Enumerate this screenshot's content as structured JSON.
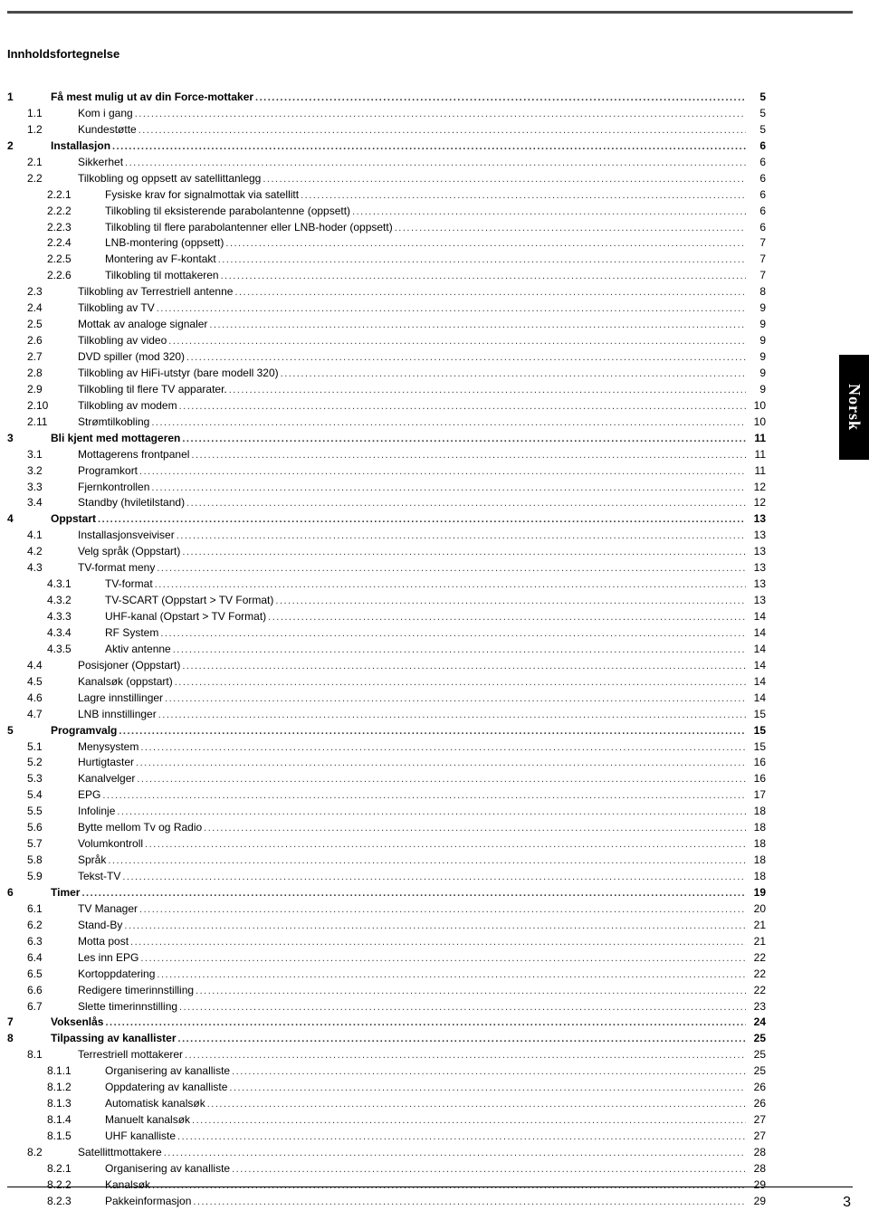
{
  "document": {
    "title": "Innholdsfortegnelse",
    "page_number": "3",
    "side_tab": "Norsk",
    "colors": {
      "rule": "#4a4a4a",
      "text": "#000000",
      "tab_bg": "#000000",
      "tab_fg": "#ffffff"
    }
  },
  "toc": [
    {
      "level": 0,
      "num": "1",
      "title": "Få mest mulig ut av din Force-mottaker",
      "page": "5",
      "bold": true
    },
    {
      "level": 1,
      "num": "1.1",
      "title": "Kom i gang",
      "page": "5"
    },
    {
      "level": 1,
      "num": "1.2",
      "title": "Kundestøtte",
      "page": "5"
    },
    {
      "level": 0,
      "num": "2",
      "title": "Installasjon",
      "page": "6",
      "bold": true
    },
    {
      "level": 1,
      "num": "2.1",
      "title": "Sikkerhet",
      "page": "6"
    },
    {
      "level": 1,
      "num": "2.2",
      "title": "Tilkobling og oppsett av satellittanlegg",
      "page": "6"
    },
    {
      "level": 2,
      "num": "2.2.1",
      "title": "Fysiske krav for signalmottak via satellitt",
      "page": "6"
    },
    {
      "level": 2,
      "num": "2.2.2",
      "title": "Tilkobling til eksisterende parabolantenne (oppsett)",
      "page": "6"
    },
    {
      "level": 2,
      "num": "2.2.3",
      "title": "Tilkobling til flere parabolantenner eller LNB-hoder (oppsett)",
      "page": "6"
    },
    {
      "level": 2,
      "num": "2.2.4",
      "title": "LNB-montering (oppsett)",
      "page": "7"
    },
    {
      "level": 2,
      "num": "2.2.5",
      "title": "Montering av F-kontakt",
      "page": "7"
    },
    {
      "level": 2,
      "num": "2.2.6",
      "title": "Tilkobling til mottakeren",
      "page": "7"
    },
    {
      "level": 1,
      "num": "2.3",
      "title": "Tilkobling av Terrestriell antenne",
      "page": "8"
    },
    {
      "level": 1,
      "num": "2.4",
      "title": "Tilkobling av TV",
      "page": "9"
    },
    {
      "level": 1,
      "num": "2.5",
      "title": "Mottak av analoge signaler",
      "page": "9"
    },
    {
      "level": 1,
      "num": "2.6",
      "title": "Tilkobling av video",
      "page": "9"
    },
    {
      "level": 1,
      "num": "2.7",
      "title": "DVD spiller (mod 320)",
      "page": "9"
    },
    {
      "level": 1,
      "num": "2.8",
      "title": "Tilkobling av HiFi-utstyr (bare modell 320)",
      "page": "9"
    },
    {
      "level": 1,
      "num": "2.9",
      "title": "Tilkobling til flere TV apparater.",
      "page": "9"
    },
    {
      "level": 1,
      "num": "2.10",
      "title": "Tilkobling av modem",
      "page": "10"
    },
    {
      "level": 1,
      "num": "2.11",
      "title": "Strømtilkobling",
      "page": "10"
    },
    {
      "level": 0,
      "num": "3",
      "title": "Bli kjent med mottageren",
      "page": "11",
      "bold": true
    },
    {
      "level": 1,
      "num": "3.1",
      "title": "Mottagerens frontpanel",
      "page": "11"
    },
    {
      "level": 1,
      "num": "3.2",
      "title": "Programkort",
      "page": "11"
    },
    {
      "level": 1,
      "num": "3.3",
      "title": "Fjernkontrollen",
      "page": "12"
    },
    {
      "level": 1,
      "num": "3.4",
      "title": "Standby (hviletilstand)",
      "page": "12"
    },
    {
      "level": 0,
      "num": "4",
      "title": "Oppstart",
      "page": "13",
      "bold": true
    },
    {
      "level": 1,
      "num": "4.1",
      "title": "Installasjonsveiviser",
      "page": "13"
    },
    {
      "level": 1,
      "num": "4.2",
      "title": "Velg språk (Oppstart)",
      "page": "13"
    },
    {
      "level": 1,
      "num": "4.3",
      "title": "TV-format meny",
      "page": "13"
    },
    {
      "level": 2,
      "num": "4.3.1",
      "title": "TV-format",
      "page": "13"
    },
    {
      "level": 2,
      "num": "4.3.2",
      "title": "TV-SCART (Oppstart > TV Format)",
      "page": "13"
    },
    {
      "level": 2,
      "num": "4.3.3",
      "title": "UHF-kanal (Opstart > TV Format)",
      "page": "14"
    },
    {
      "level": 2,
      "num": "4.3.4",
      "title": "RF System",
      "page": "14"
    },
    {
      "level": 2,
      "num": "4.3.5",
      "title": "Aktiv antenne",
      "page": "14"
    },
    {
      "level": 1,
      "num": "4.4",
      "title": "Posisjoner (Oppstart)",
      "page": "14"
    },
    {
      "level": 1,
      "num": "4.5",
      "title": "Kanalsøk (oppstart)",
      "page": "14"
    },
    {
      "level": 1,
      "num": "4.6",
      "title": "Lagre innstillinger",
      "page": "14"
    },
    {
      "level": 1,
      "num": "4.7",
      "title": "LNB innstillinger",
      "page": "15"
    },
    {
      "level": 0,
      "num": "5",
      "title": "Programvalg",
      "page": "15",
      "bold": true
    },
    {
      "level": 1,
      "num": "5.1",
      "title": "Menysystem",
      "page": "15"
    },
    {
      "level": 1,
      "num": "5.2",
      "title": "Hurtigtaster",
      "page": "16"
    },
    {
      "level": 1,
      "num": "5.3",
      "title": "Kanalvelger",
      "page": "16"
    },
    {
      "level": 1,
      "num": "5.4",
      "title": "EPG",
      "page": "17"
    },
    {
      "level": 1,
      "num": "5.5",
      "title": "Infolinje",
      "page": "18"
    },
    {
      "level": 1,
      "num": "5.6",
      "title": "Bytte mellom Tv og Radio",
      "page": "18"
    },
    {
      "level": 1,
      "num": "5.7",
      "title": "Volumkontroll",
      "page": "18"
    },
    {
      "level": 1,
      "num": "5.8",
      "title": "Språk",
      "page": "18"
    },
    {
      "level": 1,
      "num": "5.9",
      "title": "Tekst-TV",
      "page": "18"
    },
    {
      "level": 0,
      "num": "6",
      "title": "Timer",
      "page": "19",
      "bold": true
    },
    {
      "level": 1,
      "num": "6.1",
      "title": "TV Manager",
      "page": "20"
    },
    {
      "level": 1,
      "num": "6.2",
      "title": "Stand-By",
      "page": "21"
    },
    {
      "level": 1,
      "num": "6.3",
      "title": "Motta post",
      "page": "21"
    },
    {
      "level": 1,
      "num": "6.4",
      "title": "Les inn EPG",
      "page": "22"
    },
    {
      "level": 1,
      "num": "6.5",
      "title": "Kortoppdatering",
      "page": "22"
    },
    {
      "level": 1,
      "num": "6.6",
      "title": "Redigere timerinnstilling",
      "page": "22"
    },
    {
      "level": 1,
      "num": "6.7",
      "title": "Slette timerinnstilling",
      "page": "23"
    },
    {
      "level": 0,
      "num": "7",
      "title": "Voksenlås",
      "page": "24",
      "bold": true
    },
    {
      "level": 0,
      "num": "8",
      "title": "Tilpassing av kanallister",
      "page": "25",
      "bold": true
    },
    {
      "level": 1,
      "num": "8.1",
      "title": "Terrestriell mottakerer",
      "page": "25"
    },
    {
      "level": 2,
      "num": "8.1.1",
      "title": "Organisering av kanalliste",
      "page": "25"
    },
    {
      "level": 2,
      "num": "8.1.2",
      "title": "Oppdatering av kanalliste",
      "page": "26"
    },
    {
      "level": 2,
      "num": "8.1.3",
      "title": "Automatisk kanalsøk",
      "page": "26"
    },
    {
      "level": 2,
      "num": "8.1.4",
      "title": "Manuelt kanalsøk",
      "page": "27"
    },
    {
      "level": 2,
      "num": "8.1.5",
      "title": "UHF kanalliste",
      "page": "27"
    },
    {
      "level": 1,
      "num": "8.2",
      "title": "Satellittmottakere",
      "page": "28"
    },
    {
      "level": 2,
      "num": "8.2.1",
      "title": "Organisering av kanalliste",
      "page": "28"
    },
    {
      "level": 2,
      "num": "8.2.2",
      "title": "Kanalsøk",
      "page": "29"
    },
    {
      "level": 2,
      "num": "8.2.3",
      "title": "Pakkeinformasjon",
      "page": "29"
    }
  ]
}
